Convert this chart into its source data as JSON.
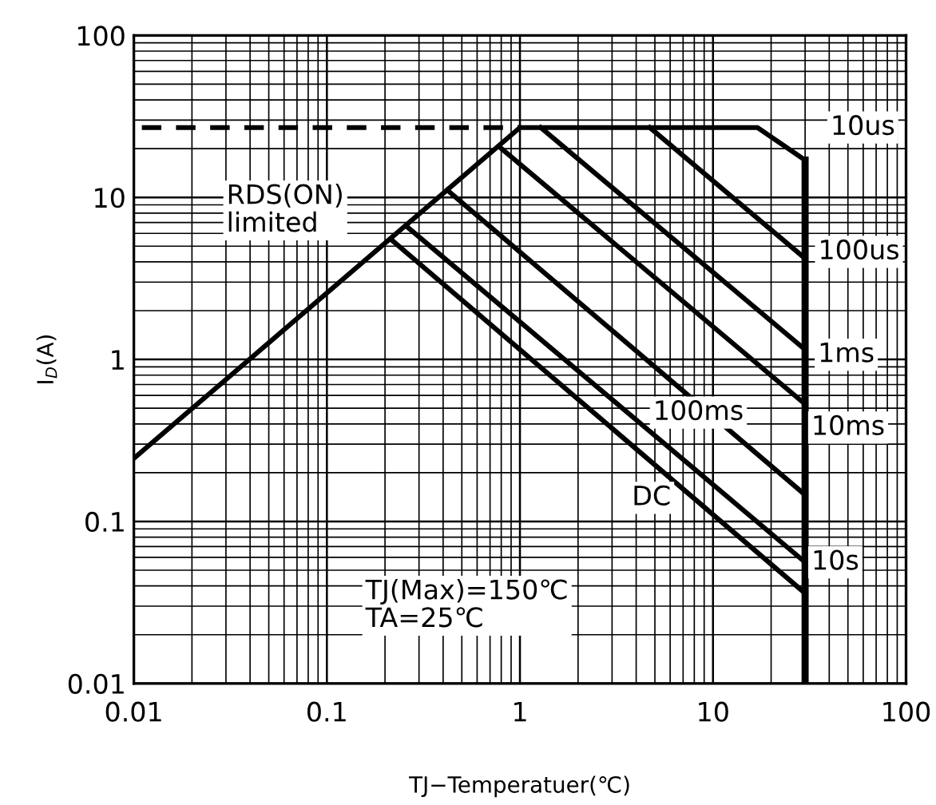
{
  "chart_data": {
    "type": "line",
    "xlabel": "TJ−Temperatuer(℃)",
    "ylabel": "I$_{D}$(A)",
    "log": "xy",
    "grid": true,
    "xlim": [
      0.01,
      100
    ],
    "xticks": [
      0.01,
      0.1,
      1,
      10,
      100
    ],
    "ylim": [
      0.01,
      100
    ],
    "yticks": [
      0.01,
      0.1,
      1,
      10,
      100
    ],
    "series": [
      {
        "color": "#000000",
        "line_style": "dashed",
        "x": [
          0.011,
          1
        ],
        "values": [
          27,
          27
        ]
      },
      {
        "color": "#000000",
        "x": [
          0.01,
          1
        ],
        "values": [
          0.245,
          27
        ]
      },
      {
        "color": "#000000",
        "x": [
          1,
          17,
          30
        ],
        "values": [
          27,
          27,
          17
        ]
      },
      {
        "color": "#000000",
        "x": [
          30,
          30
        ],
        "values": [
          17,
          0.01
        ]
      },
      {
        "color": "#000000",
        "x": [
          4.7,
          30
        ],
        "values": [
          27,
          4.2
        ]
      },
      {
        "color": "#000000",
        "x": [
          1.28,
          30
        ],
        "values": [
          27,
          1.15
        ]
      },
      {
        "color": "#000000",
        "x": [
          0.78,
          30
        ],
        "values": [
          20.6,
          0.53
        ]
      },
      {
        "color": "#000000",
        "x": [
          0.42,
          30
        ],
        "values": [
          11.1,
          0.146
        ]
      },
      {
        "color": "#000000",
        "x": [
          0.26,
          30
        ],
        "values": [
          6.6,
          0.056
        ]
      },
      {
        "color": "#000000",
        "x": [
          0.215,
          30
        ],
        "values": [
          5.5,
          0.036
        ]
      }
    ],
    "annotations": [
      "10us",
      "100us",
      {
        "text": "1ms",
        "x": 49,
        "y": 1.07
      },
      "10ms",
      {
        "text": "100ms",
        "x": 8.4,
        "y": 0.47
      },
      {
        "text": "DC",
        "x": 4.8,
        "y": 0.14
      },
      {
        "text": "10s",
        "x": 43,
        "y": 0.056
      },
      "RDS(ON)\nlimited",
      "TJ(Max)=150℃\nTA=25℃"
    ]
  }
}
